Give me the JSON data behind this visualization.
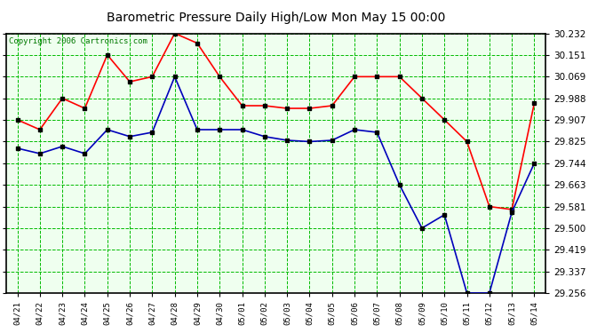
{
  "title": "Barometric Pressure Daily High/Low Mon May 15 00:00",
  "copyright": "Copyright 2006 Cartronics.com",
  "x_labels": [
    "04/21",
    "04/22",
    "04/23",
    "04/24",
    "04/25",
    "04/26",
    "04/27",
    "04/28",
    "04/29",
    "04/30",
    "05/01",
    "05/02",
    "05/03",
    "05/04",
    "05/05",
    "05/06",
    "05/07",
    "05/08",
    "05/09",
    "05/10",
    "05/11",
    "05/12",
    "05/13",
    "05/14"
  ],
  "high_values": [
    29.907,
    29.87,
    29.988,
    29.95,
    30.151,
    30.05,
    30.069,
    30.232,
    30.195,
    30.069,
    29.96,
    29.96,
    29.95,
    29.95,
    29.96,
    30.069,
    30.069,
    30.069,
    29.988,
    29.907,
    29.825,
    29.581,
    29.57,
    29.97
  ],
  "low_values": [
    29.8,
    29.78,
    29.807,
    29.78,
    29.87,
    29.844,
    29.86,
    30.069,
    29.87,
    29.87,
    29.87,
    29.844,
    29.83,
    29.825,
    29.83,
    29.87,
    29.86,
    29.663,
    29.5,
    29.55,
    29.256,
    29.256,
    29.56,
    29.744
  ],
  "high_color": "#ff0000",
  "low_color": "#0000bb",
  "marker_color": "#000000",
  "bg_color": "#ffffff",
  "plot_bg_color": "#efffef",
  "grid_color": "#00bb00",
  "grid_minor_color": "#00cc00",
  "title_color": "#000000",
  "copyright_color": "#007700",
  "y_min": 29.256,
  "y_max": 30.232,
  "y_ticks": [
    29.256,
    29.337,
    29.419,
    29.5,
    29.581,
    29.663,
    29.744,
    29.825,
    29.907,
    29.988,
    30.069,
    30.151,
    30.232
  ]
}
